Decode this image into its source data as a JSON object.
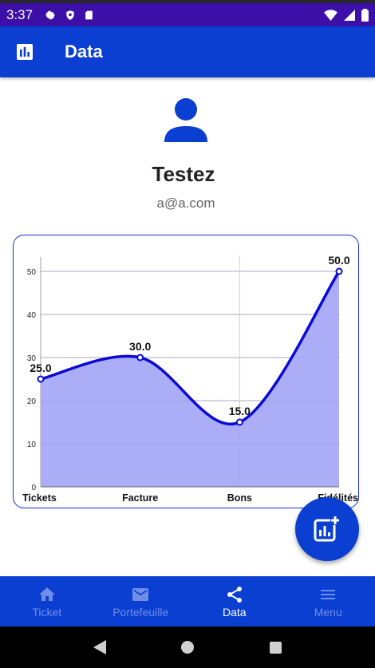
{
  "status_bar": {
    "time": "3:37"
  },
  "app_bar": {
    "title": "Data"
  },
  "profile": {
    "name": "Testez",
    "email": "a@a.com"
  },
  "chart_data": {
    "type": "area",
    "categories": [
      "Tickets",
      "Facture",
      "Bons",
      "Fidélités"
    ],
    "values": [
      25.0,
      30.0,
      15.0,
      50.0
    ],
    "value_labels": [
      "25.0",
      "30.0",
      "15.0",
      "50.0"
    ],
    "y_ticks": [
      "0",
      "10",
      "20",
      "30",
      "40",
      "50"
    ],
    "ylim": [
      0,
      50
    ],
    "grid": true,
    "colors": {
      "line": "#0a0ad8",
      "fill": "#a7a9f5",
      "highlight": "#f4c9a8"
    }
  },
  "bottom_nav": {
    "items": [
      {
        "label": "Ticket",
        "icon": "home-icon"
      },
      {
        "label": "Portefeuille",
        "icon": "mail-icon"
      },
      {
        "label": "Data",
        "icon": "share-icon"
      },
      {
        "label": "Menu",
        "icon": "menu-icon"
      }
    ]
  },
  "colors": {
    "primary": "#0a3fd1",
    "status_bar": "#3c0fa8"
  }
}
